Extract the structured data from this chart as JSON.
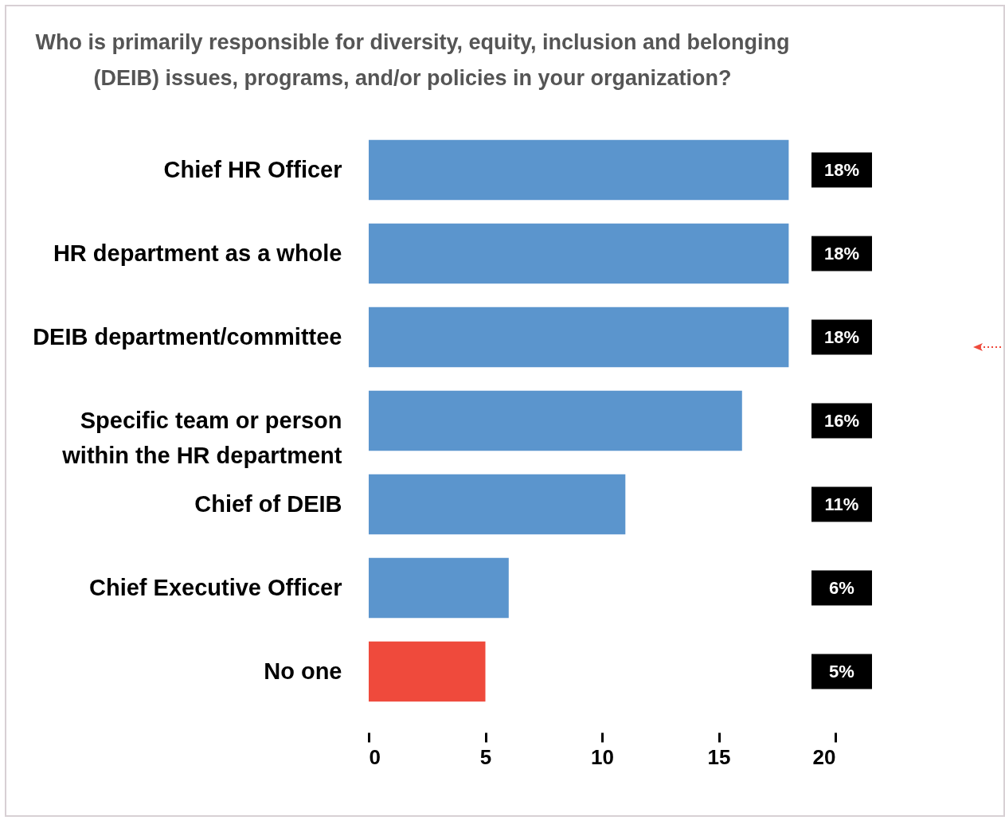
{
  "chart_data": {
    "type": "bar",
    "orientation": "horizontal",
    "title": "Who is primarily responsible for diversity, equity, inclusion and belonging\n(DEIB) issues, programs, and/or policies in your organization?",
    "categories": [
      "Chief HR Officer",
      "HR department as a whole",
      "DEIB department/committee",
      "Specific team or person\nwithin the HR department",
      "Chief of DEIB",
      "Chief Executive Officer",
      "No one"
    ],
    "values": [
      18,
      18,
      18,
      16,
      11,
      6,
      5
    ],
    "colors": [
      "#5b95cd",
      "#5b95cd",
      "#5b95cd",
      "#5b95cd",
      "#5b95cd",
      "#5b95cd",
      "#ef4a3c"
    ],
    "value_labels": [
      "18%",
      "18%",
      "18%",
      "16%",
      "11%",
      "6%",
      "5%"
    ],
    "xlim": [
      0,
      20
    ],
    "xticks": [
      0,
      5,
      10,
      15,
      20
    ],
    "grid": false
  }
}
